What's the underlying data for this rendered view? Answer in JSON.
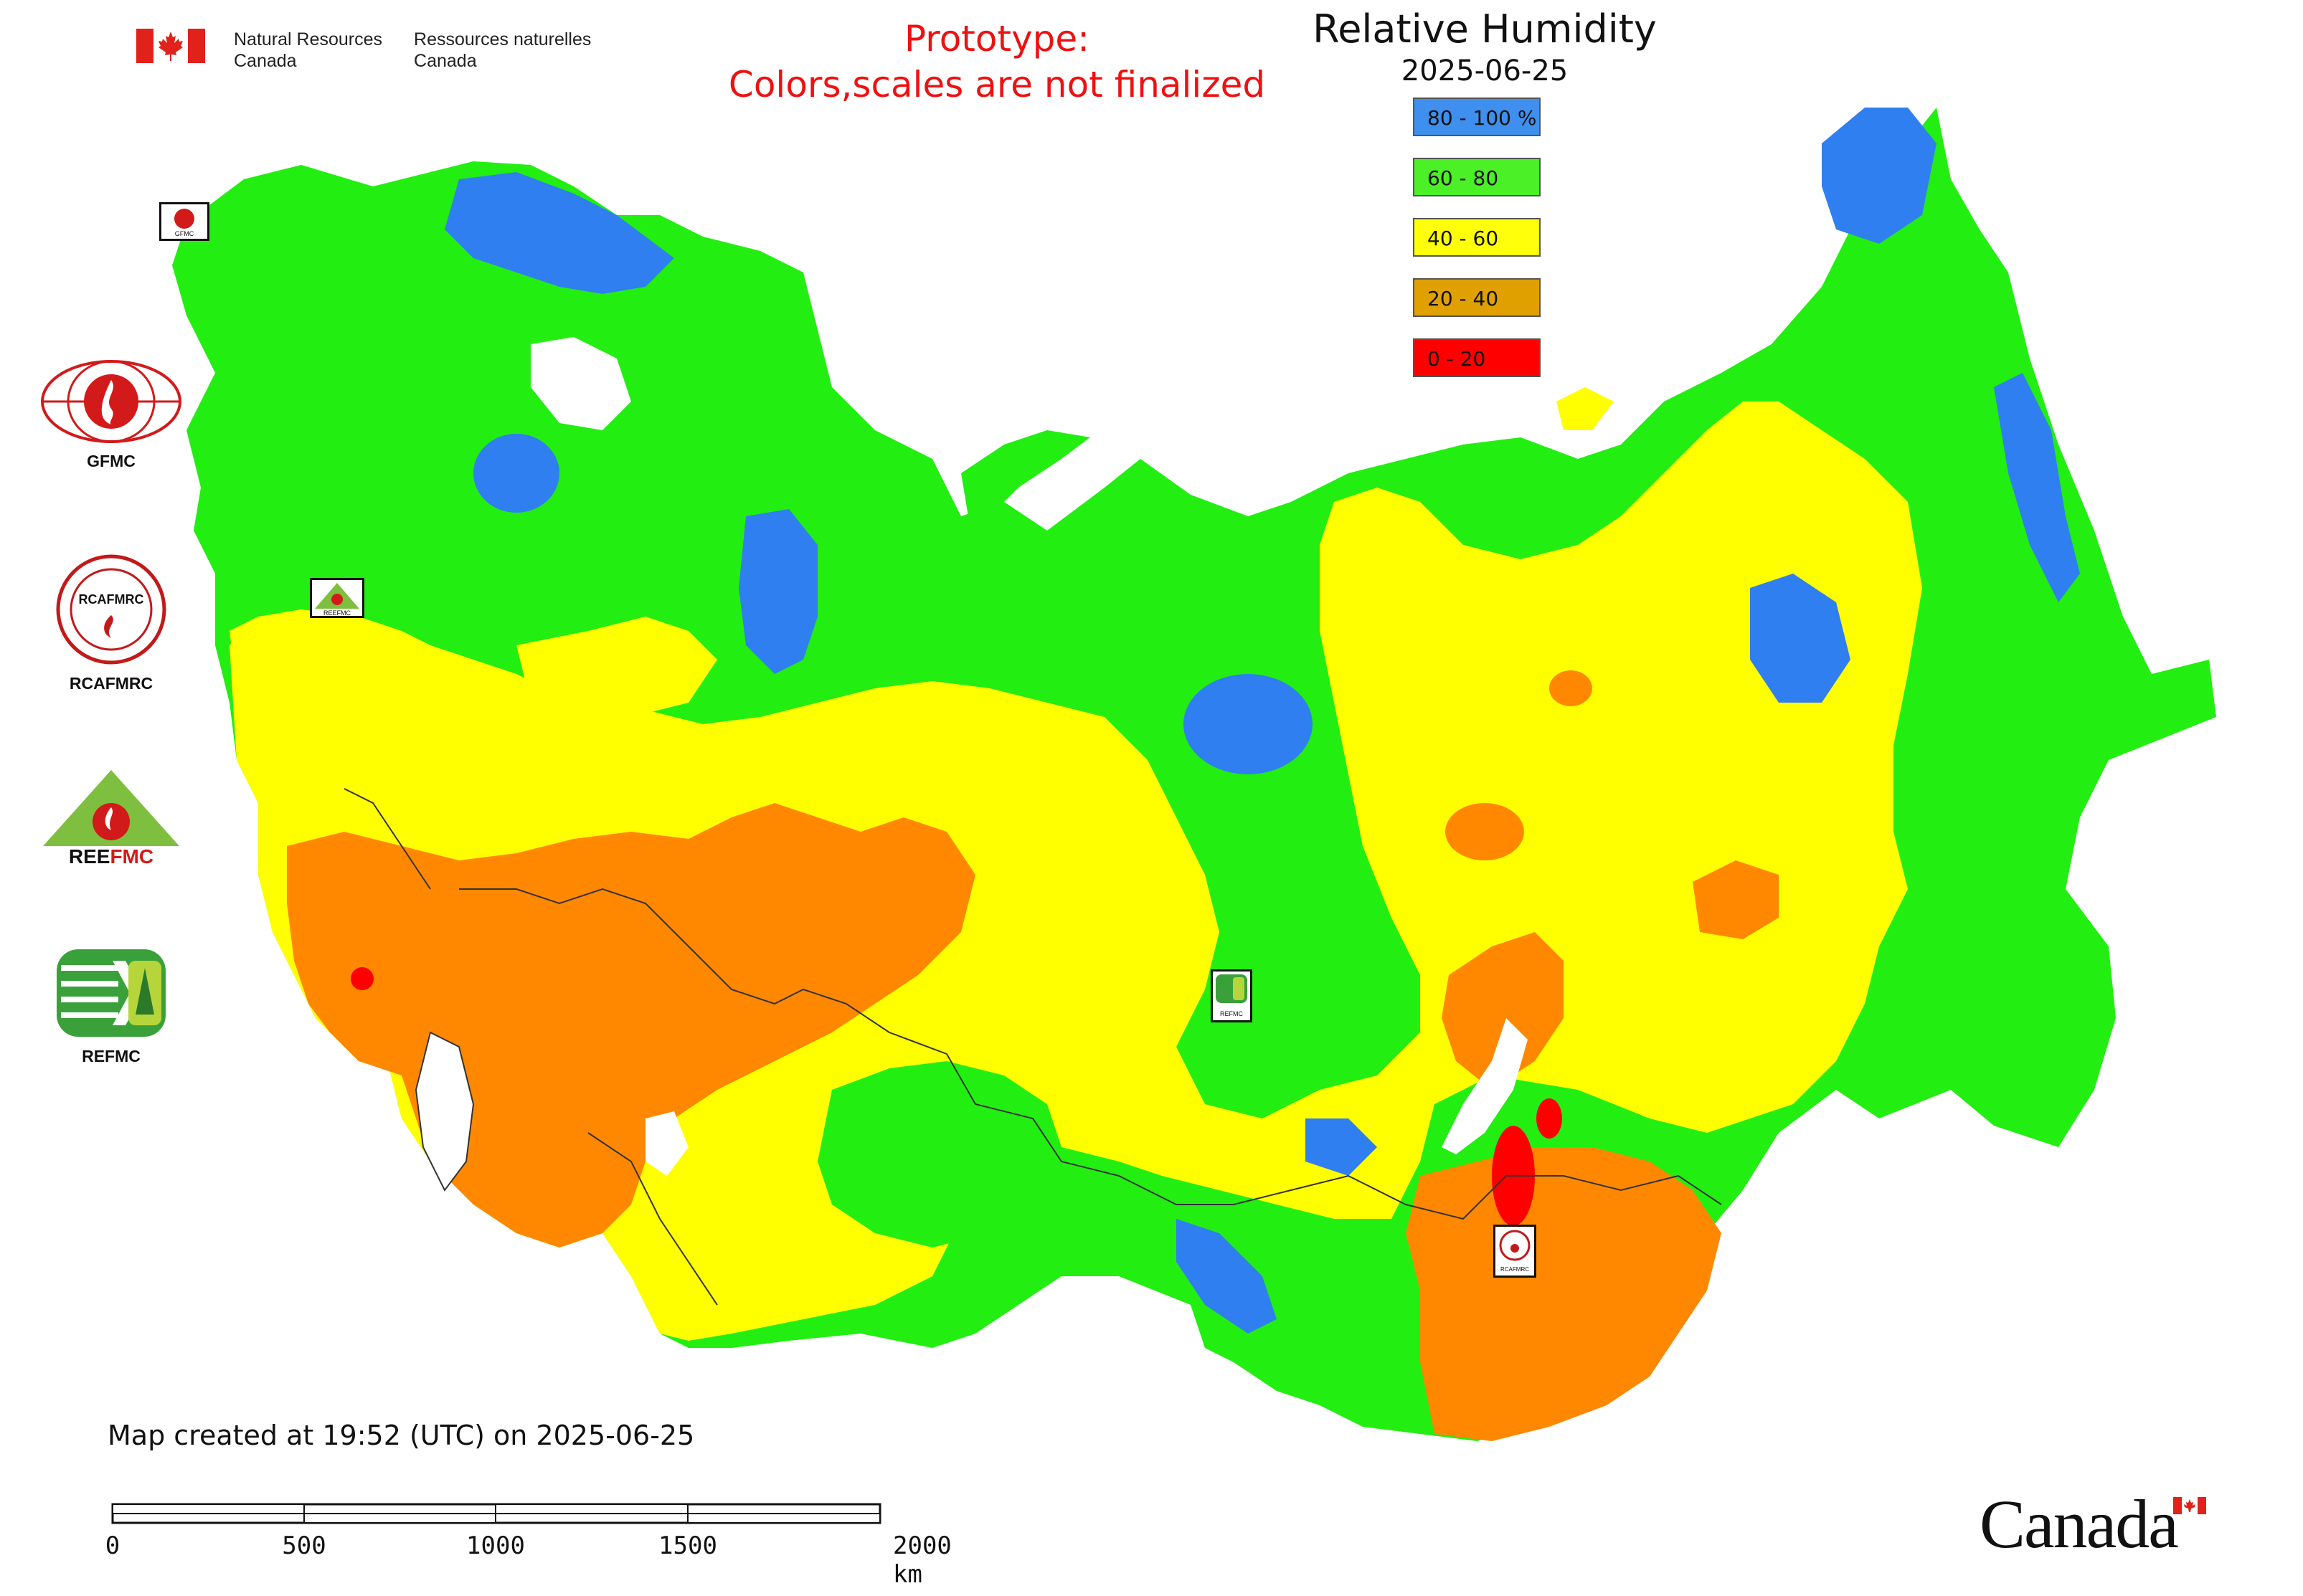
{
  "header": {
    "dept_en_line1": "Natural Resources",
    "dept_en_line2": "Canada",
    "dept_fr_line1": "Ressources naturelles",
    "dept_fr_line2": "Canada",
    "prototype_line1": "Prototype:",
    "prototype_line2": "Colors,scales are not finalized"
  },
  "map": {
    "title": "Relative Humidity",
    "date": "2025-06-25",
    "legend": [
      {
        "label": "80 - 100 %",
        "color": "#3f8fee"
      },
      {
        "label": "60 - 80",
        "color": "#4cf026"
      },
      {
        "label": "40 - 60",
        "color": "#ffff0a"
      },
      {
        "label": "20 - 40",
        "color": "#e0a000"
      },
      {
        "label": "0 - 20",
        "color": "#ff0000"
      }
    ],
    "class_colors": {
      "very_humid": "#2f7ff0",
      "humid": "#22ee11",
      "moderate": "#ffff00",
      "dry": "#ff8800",
      "very_dry": "#ff0000",
      "no_data": "#ffffff",
      "border": "#333333"
    }
  },
  "partners": [
    {
      "name": "GFMC",
      "icon": "gfmc-logo-icon"
    },
    {
      "name": "RCAFMRC",
      "icon": "rcafmrc-logo-icon"
    },
    {
      "name": "REEFMC",
      "icon": "reefmc-logo-icon"
    },
    {
      "name": "REFMC",
      "icon": "refmc-logo-icon"
    }
  ],
  "map_markers": [
    {
      "label": "GFMC",
      "icon": "gfmc-logo-icon"
    },
    {
      "label": "REEFMC",
      "icon": "reefmc-logo-icon"
    },
    {
      "label": "REFMC",
      "icon": "refmc-logo-icon"
    },
    {
      "label": "RCAFMRC",
      "icon": "rcafmrc-logo-icon"
    }
  ],
  "footer": {
    "created": "Map created at 19:52 (UTC) on 2025-06-25"
  },
  "scale_bar": {
    "ticks": [
      "0",
      "500",
      "1000",
      "1500",
      "2000 km"
    ]
  },
  "wordmark": "Canada"
}
